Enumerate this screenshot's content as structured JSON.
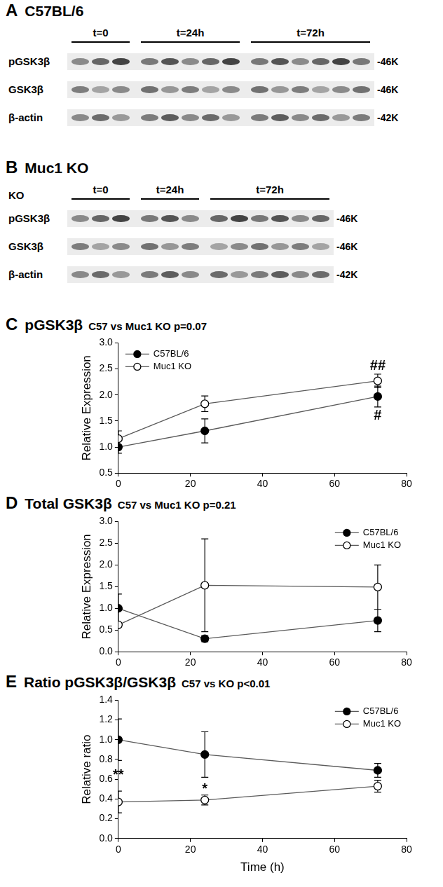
{
  "blots": [
    {
      "panel": "A",
      "title": "C57BL/6",
      "groups": [
        {
          "label": "t=0",
          "lanes": 3
        },
        {
          "label": "t=24h",
          "lanes": 5
        },
        {
          "label": "t=72h",
          "lanes": 6
        }
      ],
      "rows": [
        {
          "name": "pGSK3β",
          "size": "-46K"
        },
        {
          "name": "GSK3β",
          "size": "-46K"
        },
        {
          "name": "β-actin",
          "size": "-42K"
        }
      ]
    },
    {
      "panel": "B",
      "title": "Muc1 KO",
      "lane_label": "KO",
      "groups": [
        {
          "label": "t=0",
          "lanes": 3
        },
        {
          "label": "t=24h",
          "lanes": 3
        },
        {
          "label": "t=72h",
          "lanes": 6
        }
      ],
      "rows": [
        {
          "name": "pGSK3β",
          "size": "-46K"
        },
        {
          "name": "GSK3β",
          "size": "-46K"
        },
        {
          "name": "β-actin",
          "size": "-42K"
        }
      ]
    }
  ],
  "chart_data": [
    {
      "panel": "C",
      "type": "line",
      "title": "pGSK3β",
      "subtitle": "C57 vs Muc1 KO p=0.07",
      "y_label": "Relative Expression",
      "x": [
        0,
        24,
        72
      ],
      "xlim": [
        0,
        80
      ],
      "xticks": [
        0,
        20,
        40,
        60,
        80
      ],
      "ylim": [
        0.5,
        3.0
      ],
      "yticks": [
        0.5,
        {
          "value": 1.0,
          "label": "1.0"
        },
        1.5,
        {
          "value": 2.0,
          "label": "2.0"
        },
        2.5,
        {
          "value": 3.0,
          "label": "3.0"
        }
      ],
      "grid": false,
      "legend": "upper left",
      "series": [
        {
          "name": "C57BL/6",
          "color": "#000000",
          "marker": "filled_circle",
          "line_style": "solid",
          "values": [
            1.0,
            1.31,
            1.97
          ],
          "errors": [
            0.12,
            0.23,
            0.2
          ]
        },
        {
          "name": "Muc1 KO",
          "color": "#000000",
          "marker": "open_circle",
          "line_style": "solid",
          "values": [
            1.16,
            1.83,
            2.27
          ],
          "errors": [
            0.15,
            0.15,
            0.13
          ]
        }
      ],
      "annotations": [
        {
          "text": "##",
          "x": 72,
          "y": 2.56
        },
        {
          "text": "#",
          "x": 72,
          "y": 1.6
        }
      ]
    },
    {
      "panel": "D",
      "type": "line",
      "title": "Total GSK3β",
      "subtitle": "C57 vs Muc1 KO p=0.21",
      "y_label": "Relative Expression",
      "x": [
        0,
        24,
        72
      ],
      "xlim": [
        0,
        80
      ],
      "xticks": [
        0,
        20,
        40,
        60,
        80
      ],
      "ylim": [
        0.0,
        3.0
      ],
      "yticks": [
        {
          "value": 0.0,
          "label": "0.0"
        },
        0.5,
        {
          "value": 1.0,
          "label": "1.0"
        },
        1.5,
        {
          "value": 2.0,
          "label": "2.0"
        },
        2.5,
        {
          "value": 3.0,
          "label": "3.0"
        }
      ],
      "grid": false,
      "legend": "upper right",
      "series": [
        {
          "name": "C57BL/6",
          "color": "#000000",
          "marker": "filled_circle",
          "line_style": "solid",
          "values": [
            1.0,
            0.3,
            0.72
          ],
          "errors": [
            0.33,
            0.07,
            0.26
          ]
        },
        {
          "name": "Muc1 KO",
          "color": "#000000",
          "marker": "open_circle",
          "line_style": "solid",
          "values": [
            0.62,
            1.53,
            1.49
          ],
          "errors": [
            0.05,
            1.07,
            0.51
          ]
        }
      ],
      "annotations": []
    },
    {
      "panel": "E",
      "type": "line",
      "title": "Ratio pGSK3β/GSK3β",
      "subtitle": "C57 vs KO p<0.01",
      "y_label": "Relative ratio",
      "x_label": "Time (h)",
      "x": [
        0,
        24,
        72
      ],
      "xlim": [
        0,
        80
      ],
      "xticks": [
        0,
        20,
        40,
        60,
        80
      ],
      "ylim": [
        0.0,
        1.4
      ],
      "yticks": [
        {
          "value": 0.0,
          "label": "0.0"
        },
        0.2,
        0.4,
        0.6,
        0.8,
        {
          "value": 1.0,
          "label": "1.0"
        },
        1.2,
        1.4
      ],
      "grid": false,
      "legend": "upper right",
      "series": [
        {
          "name": "C57BL/6",
          "color": "#000000",
          "marker": "filled_circle",
          "line_style": "solid",
          "values": [
            1.0,
            0.85,
            0.69
          ],
          "errors": [
            0.21,
            0.23,
            0.07
          ]
        },
        {
          "name": "Muc1 KO",
          "color": "#000000",
          "marker": "open_circle",
          "line_style": "solid",
          "values": [
            0.37,
            0.39,
            0.53
          ],
          "errors": [
            0.11,
            0.05,
            0.06
          ]
        }
      ],
      "annotations": [
        {
          "text": "**",
          "x": 0,
          "y": 0.64
        },
        {
          "text": "*",
          "x": 24,
          "y": 0.5
        }
      ]
    }
  ]
}
